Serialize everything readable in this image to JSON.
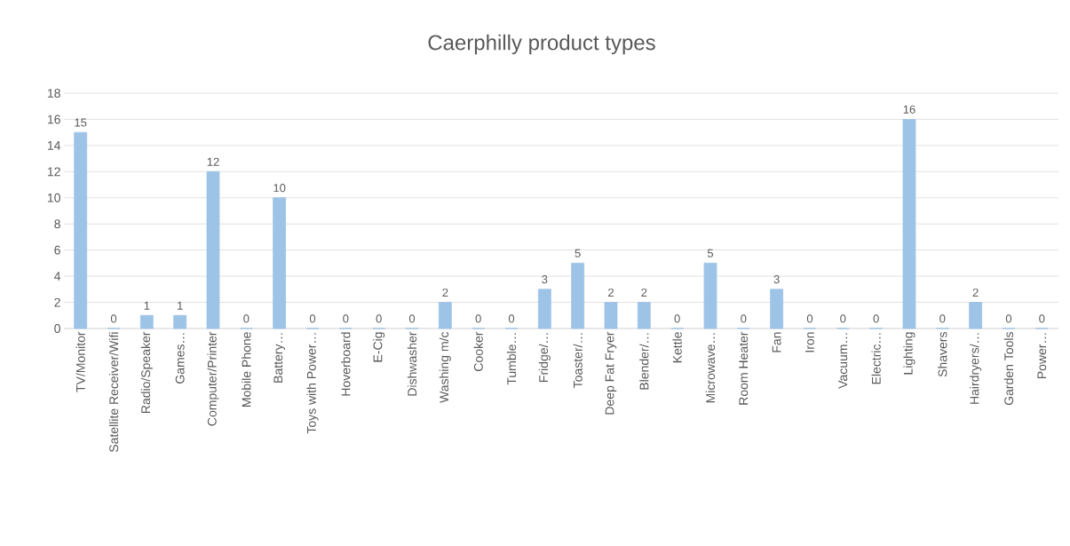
{
  "chart_data": {
    "type": "bar",
    "title": "Caerphilly product types",
    "categories": [
      "TV/Monitor",
      "Satellite Receiver/Wifi",
      "Radio/Speaker",
      "Games…",
      "Computer/Printer",
      "Mobile Phone",
      "Battery…",
      "Toys with Power…",
      "Hoverboard",
      "E-Cig",
      "Dishwasher",
      "Washing m/c",
      "Cooker",
      "Tumble…",
      "Fridge/…",
      "Toaster/…",
      "Deep Fat Fryer",
      "Blender/…",
      "Kettle",
      "Microwave…",
      "Room Heater",
      "Fan",
      "Iron",
      "Vacuum…",
      "Electric…",
      "Lighting",
      "Shavers",
      "Hairdryers/…",
      "Garden Tools",
      "Power…"
    ],
    "values": [
      15,
      0,
      1,
      1,
      12,
      0,
      10,
      0,
      0,
      0,
      0,
      2,
      0,
      0,
      3,
      5,
      2,
      2,
      0,
      5,
      0,
      3,
      0,
      0,
      0,
      16,
      0,
      2,
      0,
      0
    ],
    "color": "#9dc3e6",
    "ylim": [
      0,
      18
    ],
    "yticks": [
      0,
      2,
      4,
      6,
      8,
      10,
      12,
      14,
      16,
      18
    ],
    "grid": "y",
    "data_labels": true
  }
}
